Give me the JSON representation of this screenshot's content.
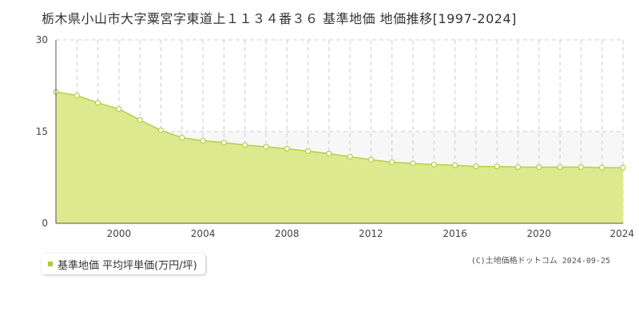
{
  "title": "栃木県小山市大字粟宮字東道上１１３４番３６ 基準地価 地価推移[1997-2024]",
  "legend": {
    "label": "基準地価 平均坪単価(万円/坪)"
  },
  "credit": "(C)土地価格ドットコム 2024-09-25",
  "colors": {
    "fill": "#dde98e",
    "line": "#b5cf46",
    "marker_fill": "#ffffff",
    "grid": "#cccccc",
    "band": "#f7f7f7"
  },
  "chart_data": {
    "type": "area",
    "title": "",
    "xlabel": "",
    "ylabel": "",
    "x": [
      1997,
      1998,
      1999,
      2000,
      2001,
      2002,
      2003,
      2004,
      2005,
      2006,
      2007,
      2008,
      2009,
      2010,
      2011,
      2012,
      2013,
      2014,
      2015,
      2016,
      2017,
      2018,
      2019,
      2020,
      2021,
      2022,
      2023,
      2024
    ],
    "series": [
      {
        "values": [
          21.5,
          20.9,
          19.7,
          18.7,
          16.9,
          15.2,
          14.0,
          13.5,
          13.2,
          12.8,
          12.5,
          12.2,
          11.8,
          11.4,
          10.9,
          10.4,
          10.0,
          9.8,
          9.6,
          9.5,
          9.3,
          9.3,
          9.2,
          9.2,
          9.2,
          9.2,
          9.1,
          9.1
        ]
      }
    ],
    "xlim": [
      1997,
      2024
    ],
    "ylim": [
      0,
      30
    ],
    "x_ticks": [
      2000,
      2004,
      2008,
      2012,
      2016,
      2020,
      2024
    ],
    "y_ticks": [
      0,
      15,
      30
    ],
    "grid": true
  }
}
